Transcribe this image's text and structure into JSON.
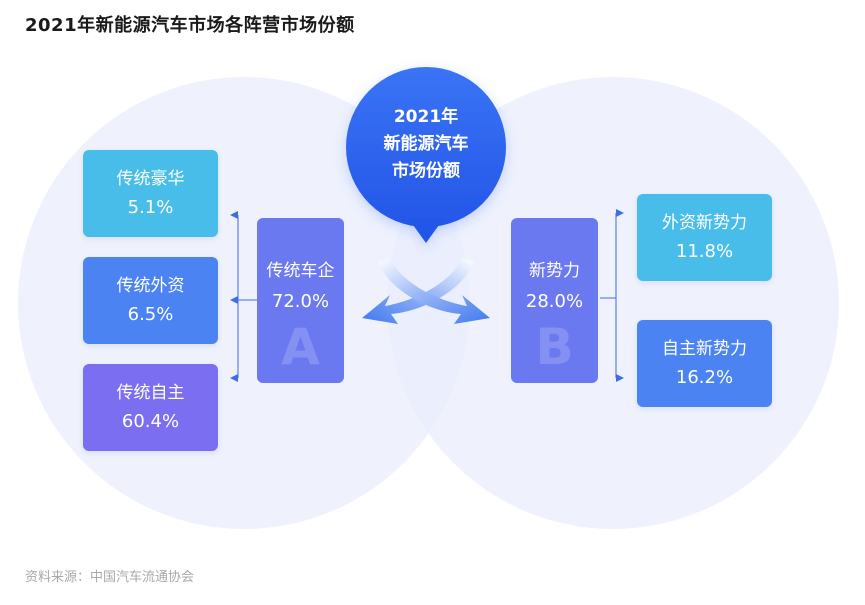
{
  "title": "2021年新能源汽车市场各阵营市场份额",
  "center": {
    "line1": "2021年",
    "line2": "新能源汽车",
    "line3": "市场份额"
  },
  "group_a": {
    "label": "传统车企",
    "value": "72.0%",
    "letter": "A",
    "children": [
      {
        "label": "传统豪华",
        "value": "5.1%"
      },
      {
        "label": "传统外资",
        "value": "6.5%"
      },
      {
        "label": "传统自主",
        "value": "60.4%"
      }
    ]
  },
  "group_b": {
    "label": "新势力",
    "value": "28.0%",
    "letter": "B",
    "children": [
      {
        "label": "外资新势力",
        "value": "11.8%"
      },
      {
        "label": "自主新势力",
        "value": "16.2%"
      }
    ]
  },
  "source": "资料来源：中国汽车流通协会",
  "colors": {
    "circle": "#eef2fd",
    "center_bubble": "#2f63f0",
    "arrow": "#5b8cf2",
    "connector": "#3a6fe8",
    "cyan": "#49bde9",
    "blue": "#4b84f2",
    "violet": "#7c6ef0",
    "group": "#6b79f0"
  }
}
